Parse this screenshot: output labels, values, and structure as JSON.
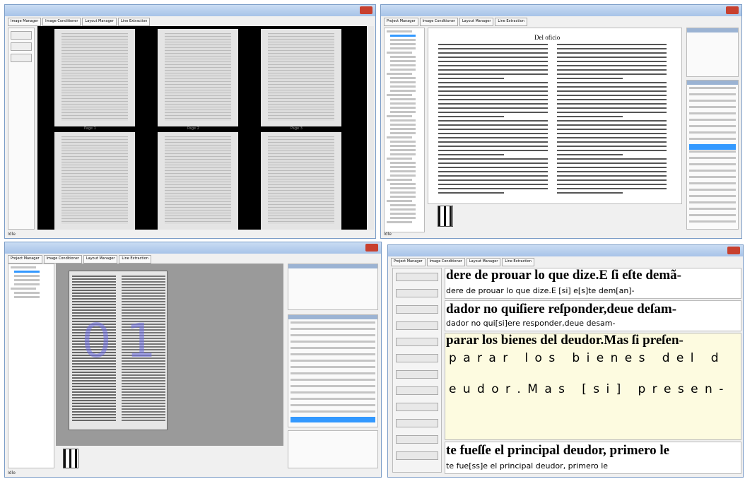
{
  "window_1": {
    "tabs": [
      "Image Manager",
      "Image Conditioner",
      "Layout Manager",
      "Line Extraction"
    ],
    "page_labels": [
      "Page 1",
      "Page 2",
      "Page 3"
    ],
    "status": "Idle"
  },
  "window_2": {
    "tabs": [
      "Project Manager",
      "Image Conditioner",
      "Layout Manager",
      "Line Extraction"
    ],
    "running_header": "Del oficio",
    "status": "Idle"
  },
  "window_3": {
    "tabs": [
      "Project Manager",
      "Image Conditioner",
      "Layout Manager",
      "Line Extraction"
    ],
    "overlay": "0 1",
    "status": "Idle"
  },
  "window_4": {
    "tabs": [
      "Project Manager",
      "Image Conditioner",
      "Layout Manager",
      "Line Extraction"
    ],
    "lines": [
      {
        "print": "dere de prouar lo que dize.E ſi eſte demã-",
        "transcription": "dere de prouar lo que dize.E [si] e[s]te dem[an]-"
      },
      {
        "print": "dador no quiſiere reſponder,deue deſam-",
        "transcription": "dador no qui[si]ere responder,deue desam-"
      },
      {
        "print": "parar los bienes del deudor.Mas ſi preſen-"
      }
    ],
    "spaced": [
      "p a r a r   l o s   b i e n e s   d e l   d",
      "e u d o r . M a s   [ s i ]   p r e s e n -"
    ],
    "last_line": {
      "print": "te fueſſe el principal deudor, primero le",
      "transcription": "te fue[ss]e el principal deudor, primero le"
    }
  }
}
